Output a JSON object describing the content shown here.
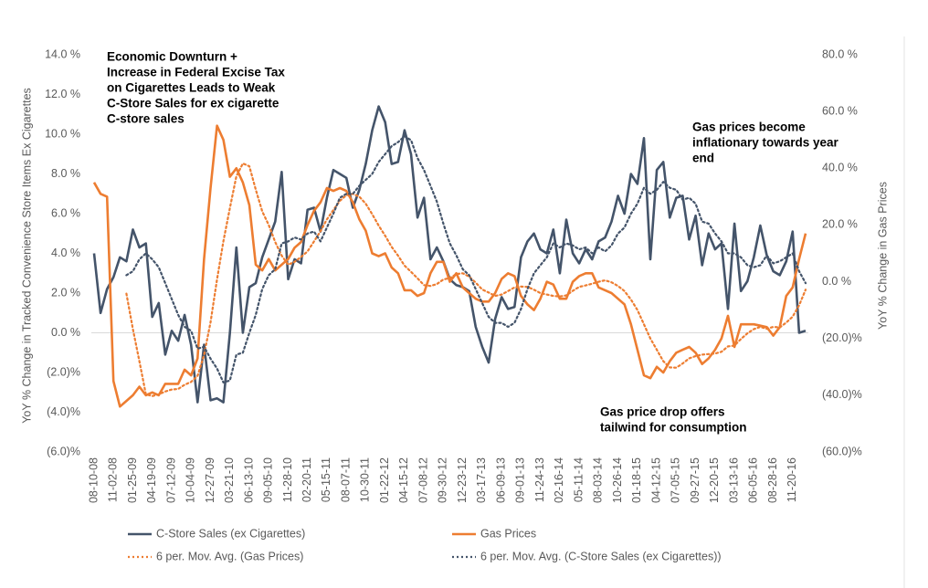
{
  "chart_data": {
    "type": "line",
    "y_axis_label": "YoY % Change in Tracked Convenience Store Items Ex Cigarettes",
    "y2_axis_label": "YoY % Change in Gas Prices",
    "annotations": [
      {
        "lines": [
          "Economic Downturn +",
          "Increase in Federal Excise Tax",
          "on Cigarettes Leads to Weak",
          "C-Store Sales for ex cigarette",
          "C-store sales"
        ]
      },
      {
        "lines": [
          "Gas prices become",
          "inflationary towards year",
          "end"
        ]
      },
      {
        "lines": [
          "Gas price drop offers",
          "tailwind for consumption"
        ]
      }
    ],
    "categories": [
      "08-10-08",
      null,
      null,
      "11-02-08",
      null,
      null,
      "01-25-09",
      null,
      null,
      "04-19-09",
      null,
      null,
      "07-12-09",
      null,
      null,
      "10-04-09",
      null,
      null,
      "12-27-09",
      null,
      null,
      "03-21-10",
      null,
      null,
      "06-13-10",
      null,
      null,
      "09-05-10",
      null,
      null,
      "11-28-10",
      null,
      null,
      "02-20-11",
      null,
      null,
      "05-15-11",
      null,
      null,
      "08-07-11",
      null,
      null,
      "10-30-11",
      null,
      null,
      "01-22-12",
      null,
      null,
      "04-15-12",
      null,
      null,
      "07-08-12",
      null,
      null,
      "09-30-12",
      null,
      null,
      "12-23-12",
      null,
      null,
      "03-17-13",
      null,
      null,
      "06-09-13",
      null,
      null,
      "09-01-13",
      null,
      null,
      "11-24-13",
      null,
      null,
      "02-16-14",
      null,
      null,
      "05-11-14",
      null,
      null,
      "08-03-14",
      null,
      null,
      "10-26-14",
      null,
      null,
      "01-18-15",
      null,
      null,
      "04-12-15",
      null,
      null,
      "07-05-15",
      null,
      null,
      "09-27-15",
      null,
      null,
      "12-20-15",
      null,
      null,
      "03-13-16",
      null,
      null,
      "06-05-16",
      null,
      null,
      "08-28-16",
      null,
      null,
      "11-20-16",
      null,
      null
    ],
    "series": [
      {
        "name": "C-Store Sales (ex Cigarettes)",
        "color": "#44546a",
        "line_style": "solid",
        "axis": "y",
        "values": [
          4.0,
          1.0,
          2.2,
          2.8,
          3.8,
          3.6,
          5.2,
          4.3,
          4.5,
          0.8,
          1.5,
          -1.1,
          0.1,
          -0.4,
          0.9,
          -0.6,
          -3.5,
          -0.6,
          -3.4,
          -3.3,
          -3.5,
          0.0,
          4.3,
          0.0,
          2.3,
          2.5,
          3.8,
          4.7,
          5.6,
          8.1,
          2.7,
          3.7,
          3.5,
          6.2,
          6.3,
          5.1,
          6.8,
          8.2,
          8.0,
          7.8,
          6.3,
          7.2,
          8.5,
          10.2,
          11.4,
          10.6,
          8.5,
          8.6,
          10.2,
          9.0,
          5.8,
          6.8,
          3.7,
          4.3,
          3.6,
          2.7,
          2.4,
          2.3,
          2.1,
          0.3,
          -0.7,
          -1.5,
          0.7,
          1.8,
          1.2,
          1.3,
          3.8,
          4.6,
          5.0,
          4.2,
          4.0,
          5.2,
          3.0,
          5.7,
          4.0,
          3.5,
          4.2,
          3.7,
          4.6,
          4.8,
          5.6,
          6.9,
          6.0,
          8.0,
          7.5,
          9.8,
          3.7,
          8.2,
          8.6,
          5.8,
          6.8,
          6.9,
          4.7,
          5.9,
          3.4,
          5.0,
          4.2,
          4.5,
          1.2,
          5.5,
          2.1,
          2.6,
          3.8,
          5.4,
          3.9,
          3.1,
          2.9,
          3.6,
          5.1,
          0.0,
          0.1
        ]
      },
      {
        "name": "Gas Prices",
        "color": "#ed7d31",
        "line_style": "solid",
        "axis": "y2",
        "values": [
          35,
          31,
          30,
          -35,
          -44,
          -42,
          -40,
          -37,
          -40,
          -39,
          -40,
          -36,
          -36,
          -36,
          -31,
          -33,
          -27,
          8,
          33,
          55,
          50,
          37,
          40,
          35,
          27,
          6,
          4,
          8,
          4,
          6,
          8,
          12,
          14,
          20,
          25,
          28,
          33,
          32,
          33,
          32,
          28,
          22,
          18,
          10,
          9,
          10,
          5,
          3,
          -3,
          -3,
          -5,
          -4,
          3,
          7,
          7,
          0,
          3,
          -2,
          -4,
          -6,
          -7,
          -7,
          -4,
          1,
          3,
          2,
          -5,
          -8,
          -10,
          -6,
          0,
          -1,
          -6,
          -6,
          0,
          2,
          3,
          3,
          -2,
          -3,
          -4,
          -6,
          -8,
          -15,
          -24,
          -33,
          -34,
          -30,
          -32,
          -28,
          -25,
          -24,
          -23,
          -25,
          -29,
          -27,
          -24,
          -20,
          -12,
          -23,
          -15,
          -15,
          -15,
          -15.5,
          -16,
          -19,
          -16,
          -5,
          -2,
          8,
          17
        ]
      },
      {
        "name": "6 per. Mov. Avg. (Gas Prices)",
        "color": "#ed7d31",
        "line_style": "dotted",
        "axis": "y2",
        "values": [
          null,
          null,
          null,
          null,
          null,
          -4.2,
          -16.7,
          -28,
          -39.7,
          -40.3,
          -39.7,
          -38.7,
          -38,
          -37.8,
          -36.3,
          -35.3,
          -33.2,
          -25.8,
          -14.3,
          0.8,
          14.3,
          26,
          37.2,
          41.7,
          40.7,
          32.5,
          24.8,
          20,
          14,
          9.2,
          6,
          7,
          8.7,
          10.7,
          14.2,
          17.8,
          22,
          25.3,
          28.5,
          30.5,
          31,
          30,
          27.5,
          23.8,
          19.8,
          16.2,
          12.3,
          9.2,
          5.7,
          3.5,
          1.2,
          -1.2,
          -1.5,
          -0.8,
          0.8,
          1.3,
          2.7,
          3,
          1.8,
          -0.3,
          -2.7,
          -3.8,
          -5,
          -4.5,
          -3.3,
          -2,
          -1.7,
          -1.8,
          -2.8,
          -4,
          -4.5,
          -5,
          -5.2,
          -4.8,
          -3.2,
          -1.8,
          -1.3,
          -0.7,
          0,
          0.5,
          -0.2,
          -1.5,
          -3.3,
          -6.3,
          -10,
          -15,
          -20,
          -24,
          -28,
          -30.2,
          -30.3,
          -28.8,
          -27,
          -26.2,
          -25.7,
          -25.5,
          -25.3,
          -24.7,
          -22.8,
          -22.5,
          -20.2,
          -18.2,
          -16.7,
          -15.9,
          -16.6,
          -15.9,
          -16.1,
          -14.4,
          -12.3,
          -8.3,
          -2.8
        ]
      },
      {
        "name": "6 per. Mov. Avg. (C-Store Sales (ex Cigarettes))",
        "color": "#44546a",
        "line_style": "dotted",
        "axis": "y",
        "values": [
          null,
          null,
          null,
          null,
          null,
          2.9,
          3.1,
          3.7,
          4.0,
          3.7,
          3.3,
          2.5,
          1.7,
          0.9,
          0.3,
          0.1,
          -0.8,
          -0.7,
          -1.3,
          -1.8,
          -2.5,
          -2.4,
          -1.1,
          -1.0,
          0.0,
          0.9,
          2.2,
          2.9,
          3.2,
          4.5,
          4.6,
          4.8,
          4.7,
          5.0,
          5.1,
          4.6,
          5.3,
          6.0,
          6.8,
          7.0,
          7.0,
          7.4,
          7.7,
          8.0,
          8.6,
          9.0,
          9.4,
          9.6,
          9.9,
          9.7,
          8.8,
          8.2,
          7.4,
          6.6,
          5.5,
          4.5,
          3.9,
          3.2,
          2.9,
          2.2,
          1.5,
          0.8,
          0.5,
          0.5,
          0.3,
          0.5,
          1.2,
          2.2,
          3.0,
          3.4,
          3.8,
          4.5,
          4.3,
          4.5,
          4.4,
          4.2,
          4.3,
          4.0,
          4.3,
          4.1,
          4.4,
          5.0,
          5.3,
          6.0,
          6.5,
          7.3,
          7.0,
          7.2,
          7.6,
          7.3,
          7.2,
          6.7,
          6.8,
          6.5,
          5.6,
          5.5,
          5.0,
          4.6,
          4.0,
          4.0,
          3.8,
          3.4,
          3.3,
          3.4,
          3.9,
          3.5,
          3.6,
          3.8,
          4.0,
          3.1,
          2.5
        ]
      }
    ],
    "ylim": [
      -6,
      14
    ],
    "yticks": [
      {
        "value": 14,
        "label": "14.0 %"
      },
      {
        "value": 12,
        "label": "12.0 %"
      },
      {
        "value": 10,
        "label": "10.0 %"
      },
      {
        "value": 8,
        "label": "8.0 %"
      },
      {
        "value": 6,
        "label": "6.0 %"
      },
      {
        "value": 4,
        "label": "4.0 %"
      },
      {
        "value": 2,
        "label": "2.0 %"
      },
      {
        "value": 0,
        "label": "0.0 %"
      },
      {
        "value": -2,
        "label": "(2.0)%"
      },
      {
        "value": -4,
        "label": "(4.0)%"
      },
      {
        "value": -6,
        "label": "(6.0)%"
      }
    ],
    "y2lim": [
      -60,
      80
    ],
    "y2ticks": [
      {
        "value": 80,
        "label": "80.0 %"
      },
      {
        "value": 60,
        "label": "60.0 %"
      },
      {
        "value": 40,
        "label": "40.0 %"
      },
      {
        "value": 20,
        "label": "20.0 %"
      },
      {
        "value": 0,
        "label": "0.0 %"
      },
      {
        "value": -20,
        "label": "(20.0)%"
      },
      {
        "value": -40,
        "label": "(40.0)%"
      },
      {
        "value": -60,
        "label": "(60.0)%"
      }
    ],
    "zero_line": true,
    "legend": "bottom"
  }
}
